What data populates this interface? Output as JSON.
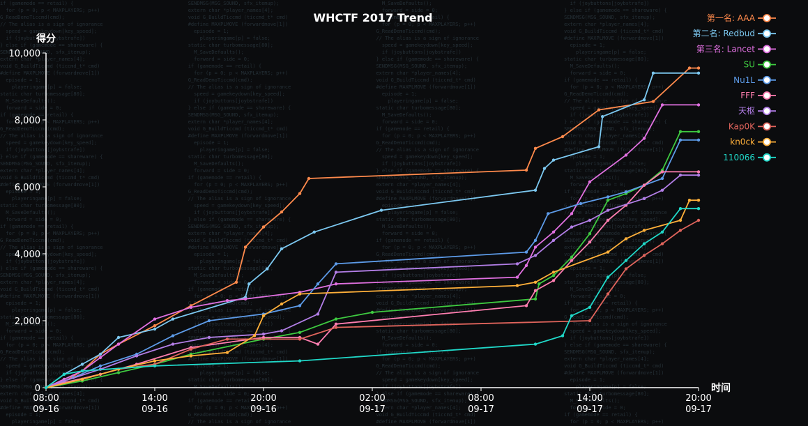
{
  "chart_data": {
    "type": "line",
    "title": "WHCTF 2017  Trend",
    "ylabel": "得分",
    "xlabel": "时间",
    "ylim": [
      0,
      10000
    ],
    "yticks": [
      {
        "value": 0,
        "label": "0"
      },
      {
        "value": 2000,
        "label": "2,000"
      },
      {
        "value": 4000,
        "label": "4,000"
      },
      {
        "value": 6000,
        "label": "6,000"
      },
      {
        "value": 8000,
        "label": "8,000"
      },
      {
        "value": 10000,
        "label": "10,000"
      }
    ],
    "xlim_hours": [
      0,
      36
    ],
    "xticks": [
      {
        "hour": 0,
        "time": "08:00",
        "date": "09-16"
      },
      {
        "hour": 6,
        "time": "14:00",
        "date": "09-16"
      },
      {
        "hour": 12,
        "time": "20:00",
        "date": "09-16"
      },
      {
        "hour": 18,
        "time": "02:00",
        "date": "09-17"
      },
      {
        "hour": 24,
        "time": "08:00",
        "date": "09-17"
      },
      {
        "hour": 30,
        "time": "14:00",
        "date": "09-17"
      },
      {
        "hour": 36,
        "time": "20:00",
        "date": "09-17"
      }
    ],
    "legend_position": "top-right",
    "grid": false,
    "series": [
      {
        "name": "第一名: AAA",
        "color": "#ff8a4c",
        "points": [
          [
            0,
            0
          ],
          [
            1,
            180
          ],
          [
            2,
            500
          ],
          [
            3,
            1000
          ],
          [
            4,
            1300
          ],
          [
            6,
            1850
          ],
          [
            8,
            2450
          ],
          [
            10.5,
            3150
          ],
          [
            11,
            4200
          ],
          [
            12,
            4800
          ],
          [
            13,
            5250
          ],
          [
            14,
            5800
          ],
          [
            14.5,
            6250
          ],
          [
            26.5,
            6500
          ],
          [
            27,
            7150
          ],
          [
            28.5,
            7500
          ],
          [
            30.5,
            8300
          ],
          [
            33.5,
            8550
          ],
          [
            35.5,
            9550
          ],
          [
            36,
            9550
          ]
        ]
      },
      {
        "name": "第二名: Redbud",
        "color": "#7cc8f0",
        "points": [
          [
            0,
            0
          ],
          [
            1,
            400
          ],
          [
            2,
            700
          ],
          [
            3,
            1000
          ],
          [
            4,
            1500
          ],
          [
            6,
            1750
          ],
          [
            7,
            2050
          ],
          [
            11,
            2700
          ],
          [
            11.2,
            3100
          ],
          [
            12.2,
            3550
          ],
          [
            13,
            4150
          ],
          [
            14.8,
            4650
          ],
          [
            18.5,
            5300
          ],
          [
            27,
            5900
          ],
          [
            27.5,
            6550
          ],
          [
            28,
            6800
          ],
          [
            30.5,
            7200
          ],
          [
            30.7,
            8100
          ],
          [
            33,
            8600
          ],
          [
            33.5,
            9400
          ],
          [
            36,
            9400
          ]
        ]
      },
      {
        "name": "第三名: Lancet",
        "color": "#e070e0",
        "points": [
          [
            0,
            0
          ],
          [
            1,
            250
          ],
          [
            2,
            500
          ],
          [
            3,
            900
          ],
          [
            4,
            1300
          ],
          [
            6,
            2050
          ],
          [
            8,
            2400
          ],
          [
            10,
            2600
          ],
          [
            11,
            2650
          ],
          [
            14,
            2850
          ],
          [
            16,
            3100
          ],
          [
            26,
            3300
          ],
          [
            26.5,
            3650
          ],
          [
            27,
            4200
          ],
          [
            28,
            4650
          ],
          [
            29,
            5200
          ],
          [
            30,
            6150
          ],
          [
            32,
            6950
          ],
          [
            33,
            7450
          ],
          [
            34,
            8450
          ],
          [
            36,
            8450
          ]
        ]
      },
      {
        "name": "SU",
        "color": "#3ec940",
        "points": [
          [
            0,
            0
          ],
          [
            2,
            200
          ],
          [
            4,
            450
          ],
          [
            6,
            700
          ],
          [
            8,
            1000
          ],
          [
            12,
            1450
          ],
          [
            14,
            1650
          ],
          [
            16,
            2050
          ],
          [
            18,
            2250
          ],
          [
            27,
            2650
          ],
          [
            27.2,
            3100
          ],
          [
            28,
            3350
          ],
          [
            29,
            3900
          ],
          [
            30,
            4600
          ],
          [
            31,
            5600
          ],
          [
            32,
            5800
          ],
          [
            33,
            6050
          ],
          [
            34,
            6500
          ],
          [
            35,
            7650
          ],
          [
            36,
            7650
          ]
        ]
      },
      {
        "name": "Nu1L",
        "color": "#5d9be8",
        "points": [
          [
            0,
            0
          ],
          [
            1.5,
            300
          ],
          [
            3,
            650
          ],
          [
            5,
            1000
          ],
          [
            7,
            1550
          ],
          [
            9,
            2000
          ],
          [
            12,
            2200
          ],
          [
            14,
            2450
          ],
          [
            15,
            3100
          ],
          [
            16,
            3700
          ],
          [
            26.5,
            4050
          ],
          [
            27,
            4400
          ],
          [
            27.7,
            5200
          ],
          [
            29.5,
            5500
          ],
          [
            31,
            5700
          ],
          [
            32,
            5850
          ],
          [
            33,
            6050
          ],
          [
            34,
            6250
          ],
          [
            35,
            7400
          ],
          [
            36,
            7400
          ]
        ]
      },
      {
        "name": "FFF",
        "color": "#ff7eb0",
        "points": [
          [
            0,
            0
          ],
          [
            1,
            150
          ],
          [
            3,
            400
          ],
          [
            5,
            700
          ],
          [
            8,
            1200
          ],
          [
            12,
            1500
          ],
          [
            14,
            1500
          ],
          [
            15,
            1300
          ],
          [
            16,
            1900
          ],
          [
            26.5,
            2450
          ],
          [
            27,
            2900
          ],
          [
            28,
            3200
          ],
          [
            29,
            3800
          ],
          [
            30,
            4350
          ],
          [
            31,
            5000
          ],
          [
            32,
            5450
          ],
          [
            33,
            6050
          ],
          [
            34,
            6450
          ],
          [
            36,
            6450
          ]
        ]
      },
      {
        "name": "天枢",
        "color": "#b27ee6",
        "points": [
          [
            0,
            0
          ],
          [
            1,
            200
          ],
          [
            3,
            550
          ],
          [
            5,
            950
          ],
          [
            7,
            1300
          ],
          [
            9,
            1500
          ],
          [
            12,
            1600
          ],
          [
            13,
            1700
          ],
          [
            15,
            2200
          ],
          [
            16,
            3450
          ],
          [
            26,
            3700
          ],
          [
            27,
            3950
          ],
          [
            28,
            4400
          ],
          [
            29,
            4800
          ],
          [
            30,
            5000
          ],
          [
            31,
            5300
          ],
          [
            33,
            5650
          ],
          [
            34,
            5900
          ],
          [
            35,
            6350
          ],
          [
            36,
            6350
          ]
        ]
      },
      {
        "name": "Kap0K",
        "color": "#e0645c",
        "points": [
          [
            0,
            0
          ],
          [
            2,
            250
          ],
          [
            4,
            550
          ],
          [
            6,
            700
          ],
          [
            8,
            1150
          ],
          [
            10,
            1450
          ],
          [
            14,
            1450
          ],
          [
            16,
            1800
          ],
          [
            30,
            2000
          ],
          [
            31,
            2800
          ],
          [
            32,
            3550
          ],
          [
            33,
            3950
          ],
          [
            34,
            4300
          ],
          [
            35,
            4700
          ],
          [
            36,
            5000
          ]
        ]
      },
      {
        "name": "kn0ck",
        "color": "#ffb03a",
        "points": [
          [
            0,
            0
          ],
          [
            2,
            250
          ],
          [
            4,
            550
          ],
          [
            6,
            800
          ],
          [
            8,
            950
          ],
          [
            10,
            1050
          ],
          [
            11.5,
            1550
          ],
          [
            12,
            2150
          ],
          [
            13,
            2500
          ],
          [
            14,
            2800
          ],
          [
            26,
            3050
          ],
          [
            27,
            3150
          ],
          [
            28,
            3450
          ],
          [
            31,
            4050
          ],
          [
            32,
            4450
          ],
          [
            33,
            4700
          ],
          [
            35,
            5000
          ],
          [
            35.5,
            5600
          ],
          [
            36,
            5600
          ]
        ]
      },
      {
        "name": "110066",
        "color": "#20d8c8",
        "points": [
          [
            0,
            0
          ],
          [
            1,
            400
          ],
          [
            2,
            500
          ],
          [
            6,
            650
          ],
          [
            14,
            800
          ],
          [
            27,
            1300
          ],
          [
            28.5,
            1550
          ],
          [
            29,
            2150
          ],
          [
            30,
            2400
          ],
          [
            31,
            3300
          ],
          [
            32,
            3800
          ],
          [
            33,
            4300
          ],
          [
            34,
            4650
          ],
          [
            35,
            5350
          ],
          [
            36,
            5350
          ]
        ]
      }
    ]
  }
}
